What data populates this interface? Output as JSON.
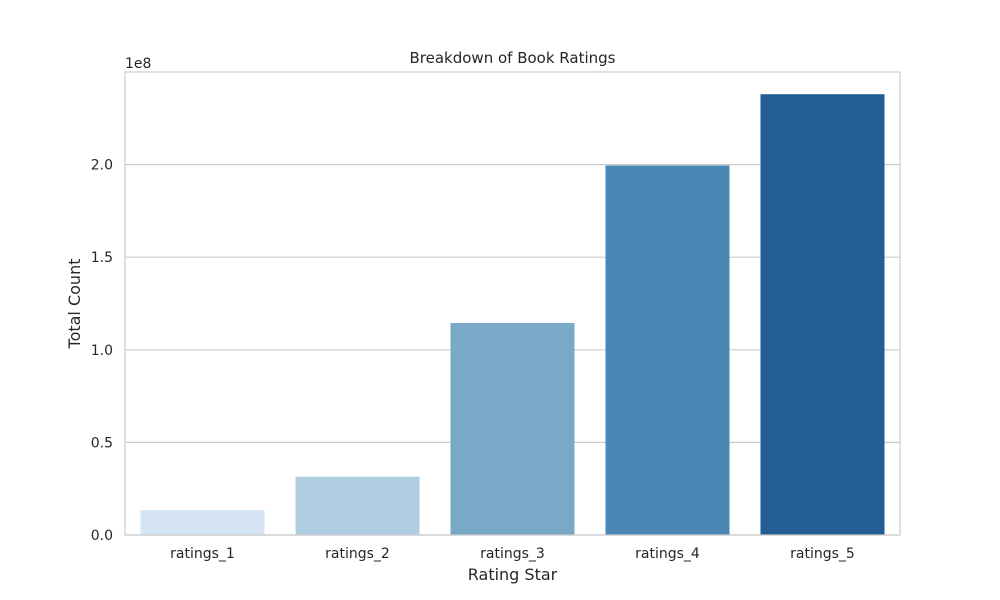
{
  "chart_data": {
    "type": "bar",
    "title": "Breakdown of Book Ratings",
    "xlabel": "Rating Star",
    "ylabel": "Total Count",
    "y_offset_label": "1e8",
    "categories": [
      "ratings_1",
      "ratings_2",
      "ratings_3",
      "ratings_4",
      "ratings_5"
    ],
    "values": [
      13500000,
      31500000,
      114500000,
      199500000,
      238000000
    ],
    "colors": [
      "#d6e5f3",
      "#b1cfe3",
      "#78aac8",
      "#4a87b4",
      "#225e94"
    ],
    "ylim": [
      0,
      250000000
    ],
    "yticks": [
      0,
      50000000,
      100000000,
      150000000,
      200000000
    ],
    "ytick_labels": [
      "0.0",
      "0.5",
      "1.0",
      "1.5",
      "2.0"
    ],
    "grid": true
  }
}
